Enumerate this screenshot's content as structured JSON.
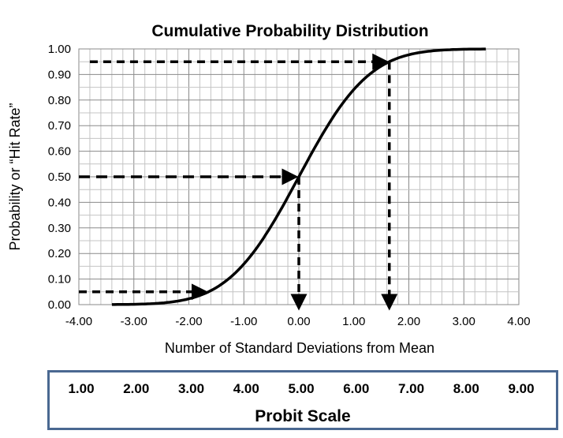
{
  "chart_data": {
    "type": "line",
    "title": "Cumulative Probability Distribution",
    "xlabel": "Number of Standard Deviations from Mean",
    "ylabel": "Probability or “Hit Rate”",
    "xlim": [
      -4,
      4
    ],
    "ylim": [
      0,
      1
    ],
    "x_ticks": [
      "-4.00",
      "-3.00",
      "-2.00",
      "-1.00",
      "0.00",
      "1.00",
      "2.00",
      "3.00",
      "4.00"
    ],
    "y_ticks": [
      "0.00",
      "0.10",
      "0.20",
      "0.30",
      "0.40",
      "0.50",
      "0.60",
      "0.70",
      "0.80",
      "0.90",
      "1.00"
    ],
    "grid": true,
    "series": [
      {
        "function": "standard normal CDF",
        "x_range": [
          -3.4,
          3.4
        ],
        "color": "#000000"
      }
    ],
    "annotations": [
      {
        "type": "dashed-arrow",
        "from": [
          -3.8,
          0.95
        ],
        "to": [
          1.645,
          0.95
        ]
      },
      {
        "type": "dashed-arrow",
        "from": [
          1.645,
          0.95
        ],
        "to": [
          1.645,
          0
        ]
      },
      {
        "type": "dashed-arrow",
        "from": [
          -4,
          0.5
        ],
        "to": [
          0,
          0.5
        ]
      },
      {
        "type": "dashed-arrow",
        "from": [
          0,
          0.5
        ],
        "to": [
          0,
          0
        ]
      },
      {
        "type": "dashed-arrow",
        "from": [
          -4,
          0.05
        ],
        "to": [
          -1.645,
          0.05
        ]
      }
    ],
    "secondary_axis": {
      "label": "Probit Scale",
      "ticks": [
        "1.00",
        "2.00",
        "3.00",
        "4.00",
        "5.00",
        "6.00",
        "7.00",
        "8.00",
        "9.00"
      ],
      "border_color": "#4a6891"
    }
  }
}
